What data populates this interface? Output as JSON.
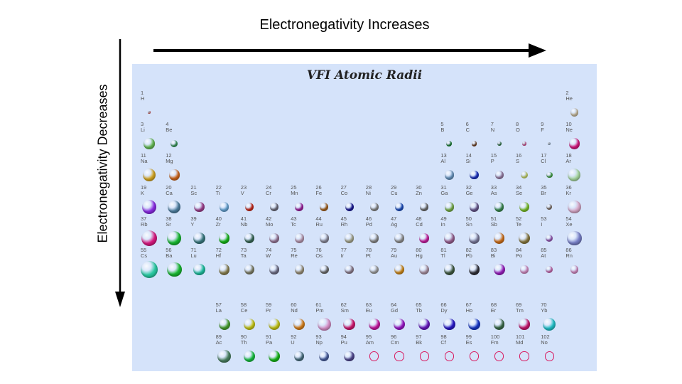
{
  "titles": {
    "horizontal": "Electronegativity Increases",
    "vertical": "Electronegativity Decreases",
    "panel": "VFI Atomic Radii"
  },
  "elements": [
    {
      "n": "1",
      "s": "H",
      "col": 1,
      "row": 1,
      "r": 0.12,
      "c": "#e57373"
    },
    {
      "n": "2",
      "s": "He",
      "col": 18,
      "row": 1,
      "r": 0.38,
      "c": "#cdbfa0"
    },
    {
      "n": "3",
      "s": "Li",
      "col": 1,
      "row": 2,
      "r": 0.52,
      "c": "#66bb55"
    },
    {
      "n": "4",
      "s": "Be",
      "col": 2,
      "row": 2,
      "r": 0.34,
      "c": "#3b9c5c"
    },
    {
      "n": "5",
      "s": "B",
      "col": 13,
      "row": 2,
      "r": 0.27,
      "c": "#1f8a3a"
    },
    {
      "n": "6",
      "s": "C",
      "col": 14,
      "row": 2,
      "r": 0.25,
      "c": "#7a4a2a"
    },
    {
      "n": "7",
      "s": "N",
      "col": 15,
      "row": 2,
      "r": 0.22,
      "c": "#2e7d46"
    },
    {
      "n": "8",
      "s": "O",
      "col": 16,
      "row": 2,
      "r": 0.19,
      "c": "#e05a9c"
    },
    {
      "n": "9",
      "s": "F",
      "col": 17,
      "row": 2,
      "r": 0.15,
      "c": "#a0b8d0"
    },
    {
      "n": "10",
      "s": "Ne",
      "col": 18,
      "row": 2,
      "r": 0.52,
      "c": "#d6187e"
    },
    {
      "n": "11",
      "s": "Na",
      "col": 1,
      "row": 3,
      "r": 0.62,
      "c": "#d4a520"
    },
    {
      "n": "12",
      "s": "Mg",
      "col": 2,
      "row": 3,
      "r": 0.52,
      "c": "#d2691e"
    },
    {
      "n": "13",
      "s": "Al",
      "col": 13,
      "row": 3,
      "r": 0.47,
      "c": "#6a97c2"
    },
    {
      "n": "14",
      "s": "Si",
      "col": 14,
      "row": 3,
      "r": 0.44,
      "c": "#1c33c4"
    },
    {
      "n": "15",
      "s": "P",
      "col": 15,
      "row": 3,
      "r": 0.41,
      "c": "#9a80a8"
    },
    {
      "n": "16",
      "s": "S",
      "col": 16,
      "row": 3,
      "r": 0.35,
      "c": "#cddc70"
    },
    {
      "n": "17",
      "s": "Cl",
      "col": 17,
      "row": 3,
      "r": 0.3,
      "c": "#4caf50"
    },
    {
      "n": "18",
      "s": "Ar",
      "col": 18,
      "row": 3,
      "r": 0.62,
      "c": "#a8d8a0"
    },
    {
      "n": "19",
      "s": "K",
      "col": 1,
      "row": 4,
      "r": 0.72,
      "c": "#8a2be2"
    },
    {
      "n": "20",
      "s": "Ca",
      "col": 2,
      "row": 4,
      "r": 0.63,
      "c": "#4f7fa0"
    },
    {
      "n": "21",
      "s": "Sc",
      "col": 3,
      "row": 4,
      "r": 0.5,
      "c": "#a0408f"
    },
    {
      "n": "22",
      "s": "Ti",
      "col": 4,
      "row": 4,
      "r": 0.46,
      "c": "#6aa8d8"
    },
    {
      "n": "23",
      "s": "V",
      "col": 5,
      "row": 4,
      "r": 0.43,
      "c": "#cc2a1a"
    },
    {
      "n": "24",
      "s": "Cr",
      "col": 6,
      "row": 4,
      "r": 0.41,
      "c": "#707080"
    },
    {
      "n": "25",
      "s": "Mn",
      "col": 7,
      "row": 4,
      "r": 0.4,
      "c": "#a020a0"
    },
    {
      "n": "26",
      "s": "Fe",
      "col": 8,
      "row": 4,
      "r": 0.42,
      "c": "#a86420"
    },
    {
      "n": "27",
      "s": "Co",
      "col": 9,
      "row": 4,
      "r": 0.42,
      "c": "#1a1a9a"
    },
    {
      "n": "28",
      "s": "Ni",
      "col": 10,
      "row": 4,
      "r": 0.41,
      "c": "#8a8a8a"
    },
    {
      "n": "29",
      "s": "Cu",
      "col": 11,
      "row": 4,
      "r": 0.41,
      "c": "#1c4fc0"
    },
    {
      "n": "30",
      "s": "Zn",
      "col": 12,
      "row": 4,
      "r": 0.4,
      "c": "#707070"
    },
    {
      "n": "31",
      "s": "Ga",
      "col": 13,
      "row": 4,
      "r": 0.45,
      "c": "#78b04a"
    },
    {
      "n": "32",
      "s": "Ge",
      "col": 14,
      "row": 4,
      "r": 0.45,
      "c": "#6a5a90"
    },
    {
      "n": "33",
      "s": "As",
      "col": 15,
      "row": 4,
      "r": 0.45,
      "c": "#3a8a50"
    },
    {
      "n": "34",
      "s": "Se",
      "col": 16,
      "row": 4,
      "r": 0.5,
      "c": "#7cc22a"
    },
    {
      "n": "35",
      "s": "Br",
      "col": 17,
      "row": 4,
      "r": 0.29,
      "c": "#8a7a70"
    },
    {
      "n": "36",
      "s": "Kr",
      "col": 18,
      "row": 4,
      "r": 0.65,
      "c": "#d8a8c8"
    },
    {
      "n": "37",
      "s": "Rb",
      "col": 1,
      "row": 5,
      "r": 0.78,
      "c": "#d6187e"
    },
    {
      "n": "38",
      "s": "Sr",
      "col": 2,
      "row": 5,
      "r": 0.71,
      "c": "#18b830"
    },
    {
      "n": "39",
      "s": "Y",
      "col": 3,
      "row": 5,
      "r": 0.58,
      "c": "#3a7a80"
    },
    {
      "n": "40",
      "s": "Zr",
      "col": 4,
      "row": 5,
      "r": 0.52,
      "c": "#18b818"
    },
    {
      "n": "41",
      "s": "Nb",
      "col": 5,
      "row": 5,
      "r": 0.48,
      "c": "#3a6a58"
    },
    {
      "n": "42",
      "s": "Mo",
      "col": 6,
      "row": 5,
      "r": 0.47,
      "c": "#987898"
    },
    {
      "n": "43",
      "s": "Tc",
      "col": 7,
      "row": 5,
      "r": 0.46,
      "c": "#b898b0"
    },
    {
      "n": "44",
      "s": "Ru",
      "col": 8,
      "row": 5,
      "r": 0.45,
      "c": "#8a8a9a"
    },
    {
      "n": "45",
      "s": "Rh",
      "col": 9,
      "row": 5,
      "r": 0.45,
      "c": "#a8a890"
    },
    {
      "n": "46",
      "s": "Pd",
      "col": 10,
      "row": 5,
      "r": 0.45,
      "c": "#8a8a8a"
    },
    {
      "n": "47",
      "s": "Ag",
      "col": 11,
      "row": 5,
      "r": 0.47,
      "c": "#909090"
    },
    {
      "n": "48",
      "s": "Cd",
      "col": 12,
      "row": 5,
      "r": 0.47,
      "c": "#c81ea0"
    },
    {
      "n": "49",
      "s": "In",
      "col": 13,
      "row": 5,
      "r": 0.52,
      "c": "#986090"
    },
    {
      "n": "50",
      "s": "Sn",
      "col": 14,
      "row": 5,
      "r": 0.52,
      "c": "#7a7a9a"
    },
    {
      "n": "51",
      "s": "Sb",
      "col": 15,
      "row": 5,
      "r": 0.52,
      "c": "#d0701a"
    },
    {
      "n": "52",
      "s": "Te",
      "col": 16,
      "row": 5,
      "r": 0.55,
      "c": "#8a7a40"
    },
    {
      "n": "53",
      "s": "I",
      "col": 17,
      "row": 5,
      "r": 0.36,
      "c": "#a060c0"
    },
    {
      "n": "54",
      "s": "Xe",
      "col": 18,
      "row": 5,
      "r": 0.72,
      "c": "#7880c8"
    },
    {
      "n": "55",
      "s": "Cs",
      "col": 1,
      "row": 6,
      "r": 0.86,
      "c": "#28c8a0"
    },
    {
      "n": "56",
      "s": "Ba",
      "col": 2,
      "row": 6,
      "r": 0.72,
      "c": "#18b830"
    },
    {
      "n": "71",
      "s": "Lu",
      "col": 3,
      "row": 6,
      "r": 0.56,
      "c": "#20c0a0"
    },
    {
      "n": "72",
      "s": "Hf",
      "col": 4,
      "row": 6,
      "r": 0.52,
      "c": "#8a8050"
    },
    {
      "n": "73",
      "s": "Ta",
      "col": 5,
      "row": 6,
      "r": 0.48,
      "c": "#808068"
    },
    {
      "n": "74",
      "s": "W",
      "col": 6,
      "row": 6,
      "r": 0.46,
      "c": "#707088"
    },
    {
      "n": "75",
      "s": "Re",
      "col": 7,
      "row": 6,
      "r": 0.45,
      "c": "#9a9078"
    },
    {
      "n": "76",
      "s": "Os",
      "col": 8,
      "row": 6,
      "r": 0.44,
      "c": "#707070"
    },
    {
      "n": "77",
      "s": "Ir",
      "col": 9,
      "row": 6,
      "r": 0.44,
      "c": "#908090"
    },
    {
      "n": "78",
      "s": "Pt",
      "col": 10,
      "row": 6,
      "r": 0.44,
      "c": "#a0a0a0"
    },
    {
      "n": "79",
      "s": "Au",
      "col": 11,
      "row": 6,
      "r": 0.47,
      "c": "#d08a1a"
    },
    {
      "n": "80",
      "s": "Hg",
      "col": 12,
      "row": 6,
      "r": 0.48,
      "c": "#a890a0"
    },
    {
      "n": "81",
      "s": "Tl",
      "col": 13,
      "row": 6,
      "r": 0.52,
      "c": "#405a40"
    },
    {
      "n": "82",
      "s": "Pb",
      "col": 14,
      "row": 6,
      "r": 0.53,
      "c": "#303038"
    },
    {
      "n": "83",
      "s": "Bi",
      "col": 15,
      "row": 6,
      "r": 0.56,
      "c": "#9a20c0"
    },
    {
      "n": "84",
      "s": "Po",
      "col": 16,
      "row": 6,
      "r": 0.38,
      "c": "#d890c8"
    },
    {
      "n": "85",
      "s": "At",
      "col": 17,
      "row": 6,
      "r": 0.36,
      "c": "#d070b8"
    },
    {
      "n": "86",
      "s": "Rn",
      "col": 18,
      "row": 6,
      "r": 0.38,
      "c": "#d890c8"
    },
    {
      "n": "57",
      "s": "La",
      "col": 4,
      "row": 8,
      "r": 0.55,
      "c": "#48a030"
    },
    {
      "n": "58",
      "s": "Ce",
      "col": 5,
      "row": 8,
      "r": 0.56,
      "c": "#c8c818"
    },
    {
      "n": "59",
      "s": "Pr",
      "col": 6,
      "row": 8,
      "r": 0.56,
      "c": "#c8c818"
    },
    {
      "n": "60",
      "s": "Nd",
      "col": 7,
      "row": 8,
      "r": 0.56,
      "c": "#d8801a"
    },
    {
      "n": "61",
      "s": "Pm",
      "col": 8,
      "row": 8,
      "r": 0.64,
      "c": "#d890c8"
    },
    {
      "n": "62",
      "s": "Sm",
      "col": 9,
      "row": 8,
      "r": 0.56,
      "c": "#d0186e"
    },
    {
      "n": "63",
      "s": "Eu",
      "col": 10,
      "row": 8,
      "r": 0.56,
      "c": "#c818a0"
    },
    {
      "n": "64",
      "s": "Gd",
      "col": 11,
      "row": 8,
      "r": 0.57,
      "c": "#9a18c8"
    },
    {
      "n": "65",
      "s": "Tb",
      "col": 12,
      "row": 8,
      "r": 0.56,
      "c": "#6818c0"
    },
    {
      "n": "66",
      "s": "Dy",
      "col": 13,
      "row": 8,
      "r": 0.56,
      "c": "#2818c8"
    },
    {
      "n": "67",
      "s": "Ho",
      "col": 14,
      "row": 8,
      "r": 0.56,
      "c": "#1838c8"
    },
    {
      "n": "68",
      "s": "Er",
      "col": 15,
      "row": 8,
      "r": 0.53,
      "c": "#3a6a48"
    },
    {
      "n": "69",
      "s": "Tm",
      "col": 16,
      "row": 8,
      "r": 0.53,
      "c": "#c8186e"
    },
    {
      "n": "70",
      "s": "Yb",
      "col": 17,
      "row": 8,
      "r": 0.64,
      "c": "#20c0c8"
    },
    {
      "n": "89",
      "s": "Ac",
      "col": 4,
      "row": 9,
      "r": 0.65,
      "c": "#4a8060"
    },
    {
      "n": "90",
      "s": "Th",
      "col": 5,
      "row": 9,
      "r": 0.57,
      "c": "#18c040"
    },
    {
      "n": "91",
      "s": "Pa",
      "col": 6,
      "row": 9,
      "r": 0.54,
      "c": "#18b818"
    },
    {
      "n": "92",
      "s": "U",
      "col": 7,
      "row": 9,
      "r": 0.5,
      "c": "#4a7080"
    },
    {
      "n": "93",
      "s": "Np",
      "col": 8,
      "row": 9,
      "r": 0.49,
      "c": "#4a60a0"
    },
    {
      "n": "94",
      "s": "Pu",
      "col": 9,
      "row": 9,
      "r": 0.49,
      "c": "#504890"
    },
    {
      "n": "95",
      "s": "Am",
      "col": 10,
      "row": 9,
      "r": 0.45,
      "c": "ring"
    },
    {
      "n": "96",
      "s": "Cm",
      "col": 11,
      "row": 9,
      "r": 0.45,
      "c": "ring"
    },
    {
      "n": "97",
      "s": "Bk",
      "col": 12,
      "row": 9,
      "r": 0.45,
      "c": "ring"
    },
    {
      "n": "98",
      "s": "Cf",
      "col": 13,
      "row": 9,
      "r": 0.45,
      "c": "ring"
    },
    {
      "n": "99",
      "s": "Es",
      "col": 14,
      "row": 9,
      "r": 0.45,
      "c": "ring"
    },
    {
      "n": "100",
      "s": "Fm",
      "col": 15,
      "row": 9,
      "r": 0.45,
      "c": "ring"
    },
    {
      "n": "101",
      "s": "Md",
      "col": 16,
      "row": 9,
      "r": 0.45,
      "c": "ring"
    },
    {
      "n": "102",
      "s": "No",
      "col": 17,
      "row": 9,
      "r": 0.45,
      "c": "ring"
    }
  ]
}
